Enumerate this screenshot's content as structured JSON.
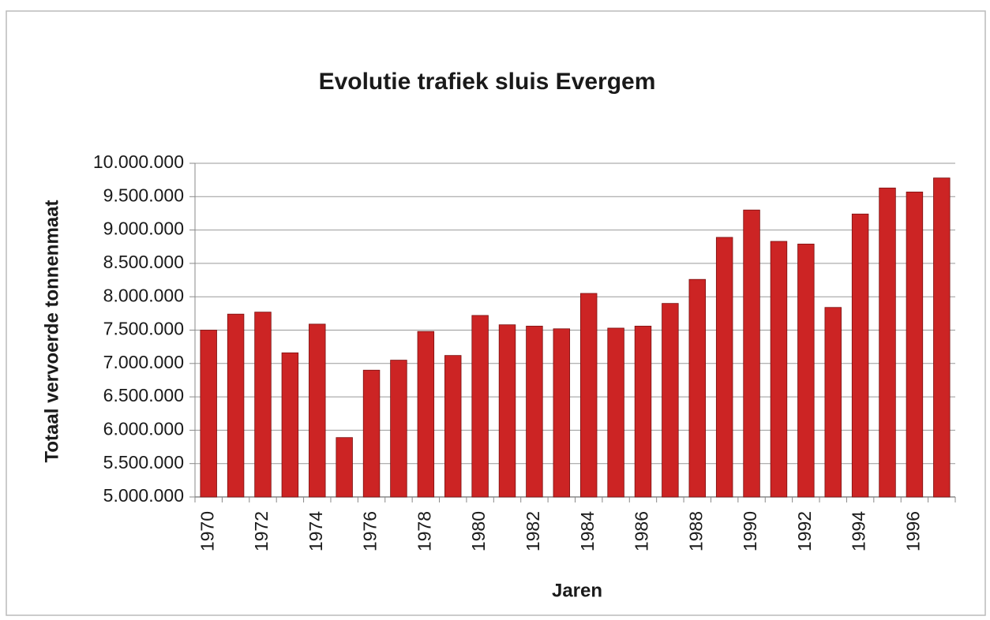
{
  "chart_data": {
    "type": "bar",
    "title": "Evolutie trafiek sluis Evergem",
    "xlabel": "Jaren",
    "ylabel": "Totaal vervoerde tonnenmaat",
    "categories": [
      "1970",
      null,
      "1972",
      null,
      "1974",
      null,
      "1976",
      null,
      "1978",
      null,
      "1980",
      null,
      "1982",
      null,
      "1984",
      null,
      "1986",
      null,
      "1988",
      null,
      "1990",
      null,
      "1992",
      null,
      "1994",
      null,
      "1996",
      null
    ],
    "values": [
      7500000,
      7740000,
      7770000,
      7160000,
      7590000,
      5890000,
      6900000,
      7050000,
      7480000,
      7120000,
      7720000,
      7580000,
      7560000,
      7520000,
      8050000,
      7530000,
      7560000,
      7900000,
      8260000,
      8890000,
      9300000,
      8830000,
      8790000,
      7840000,
      9240000,
      9630000,
      9570000,
      9780000
    ],
    "color": "#cc2424",
    "ylim": [
      5000000,
      10000000
    ],
    "yticks": [
      {
        "value": 5000000,
        "label": "5.000.000"
      },
      {
        "value": 5500000,
        "label": "5.500.000"
      },
      {
        "value": 6000000,
        "label": "6.000.000"
      },
      {
        "value": 6500000,
        "label": "6.500.000"
      },
      {
        "value": 7000000,
        "label": "7.000.000"
      },
      {
        "value": 7500000,
        "label": "7.500.000"
      },
      {
        "value": 8000000,
        "label": "8.000.000"
      },
      {
        "value": 8500000,
        "label": "8.500.000"
      },
      {
        "value": 9000000,
        "label": "9.000.000"
      },
      {
        "value": 9500000,
        "label": "9.500.000"
      },
      {
        "value": 10000000,
        "label": "10.000.000"
      }
    ],
    "grid": true
  }
}
